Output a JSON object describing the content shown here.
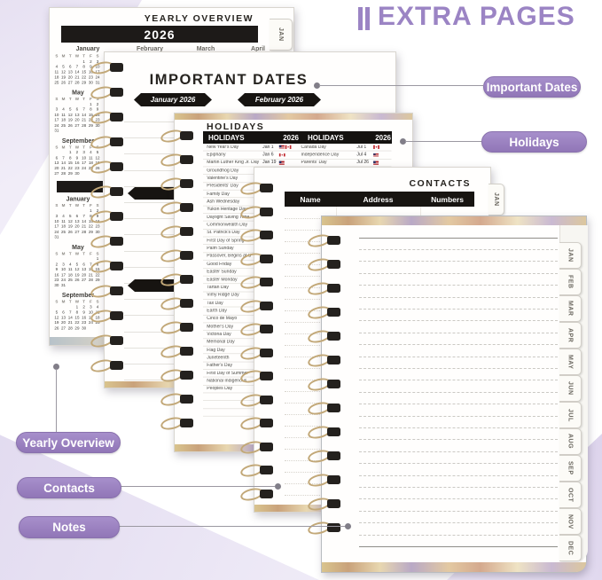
{
  "title": {
    "text": "EXTRA PAGES"
  },
  "colors": {
    "accent": "#9b84c4",
    "pill": "#9d84c6",
    "bar_black": "#1d1a18",
    "wire_gold": "#c2a878"
  },
  "labels": {
    "important_dates": "Important Dates",
    "holidays": "Holidays",
    "yearly_overview": "Yearly Overview",
    "contacts": "Contacts",
    "notes": "Notes"
  },
  "yearly_overview_page": {
    "heading": "YEARLY OVERVIEW",
    "year": "2026",
    "tab": "JAN",
    "top_months": [
      "January",
      "February",
      "March",
      "April"
    ],
    "day_headers": [
      "S",
      "M",
      "T",
      "W",
      "T",
      "F",
      "S"
    ],
    "sections": [
      {
        "months": [
          {
            "name": "January",
            "weeks": [
              [
                "",
                "",
                "",
                "",
                "1",
                "2",
                "3"
              ],
              [
                "4",
                "5",
                "6",
                "7",
                "8",
                "9",
                "10"
              ],
              [
                "11",
                "12",
                "13",
                "14",
                "15",
                "16",
                "17"
              ],
              [
                "18",
                "19",
                "20",
                "21",
                "22",
                "23",
                "24"
              ],
              [
                "25",
                "26",
                "27",
                "28",
                "29",
                "30",
                "31"
              ]
            ]
          },
          {
            "name": "May",
            "weeks": [
              [
                "",
                "",
                "",
                "",
                "",
                "1",
                "2"
              ],
              [
                "3",
                "4",
                "5",
                "6",
                "7",
                "8",
                "9"
              ],
              [
                "10",
                "11",
                "12",
                "13",
                "14",
                "15",
                "16"
              ],
              [
                "17",
                "18",
                "19",
                "20",
                "21",
                "22",
                "23"
              ],
              [
                "24",
                "25",
                "26",
                "27",
                "28",
                "29",
                "30"
              ],
              [
                "31",
                "",
                "",
                "",
                "",
                "",
                ""
              ]
            ]
          },
          {
            "name": "September",
            "weeks": [
              [
                "",
                "",
                "1",
                "2",
                "3",
                "4",
                "5"
              ],
              [
                "6",
                "7",
                "8",
                "9",
                "10",
                "11",
                "12"
              ],
              [
                "13",
                "14",
                "15",
                "16",
                "17",
                "18",
                "19"
              ],
              [
                "20",
                "21",
                "22",
                "23",
                "24",
                "25",
                "26"
              ],
              [
                "27",
                "28",
                "29",
                "30",
                "",
                "",
                ""
              ]
            ]
          }
        ]
      },
      {
        "months": [
          {
            "name": "January",
            "weeks": [
              [
                "",
                "",
                "",
                "",
                "",
                "1",
                "2"
              ],
              [
                "3",
                "4",
                "5",
                "6",
                "7",
                "8",
                "9"
              ],
              [
                "10",
                "11",
                "12",
                "13",
                "14",
                "15",
                "16"
              ],
              [
                "17",
                "18",
                "19",
                "20",
                "21",
                "22",
                "23"
              ],
              [
                "24",
                "25",
                "26",
                "27",
                "28",
                "29",
                "30"
              ],
              [
                "31",
                "",
                "",
                "",
                "",
                "",
                ""
              ]
            ]
          },
          {
            "name": "May",
            "weeks": [
              [
                "",
                "",
                "",
                "",
                "",
                "",
                "1"
              ],
              [
                "2",
                "3",
                "4",
                "5",
                "6",
                "7",
                "8"
              ],
              [
                "9",
                "10",
                "11",
                "12",
                "13",
                "14",
                "15"
              ],
              [
                "16",
                "17",
                "18",
                "19",
                "20",
                "21",
                "22"
              ],
              [
                "23",
                "24",
                "25",
                "26",
                "27",
                "28",
                "29"
              ],
              [
                "30",
                "31",
                "",
                "",
                "",
                "",
                ""
              ]
            ]
          },
          {
            "name": "September",
            "weeks": [
              [
                "",
                "",
                "",
                "1",
                "2",
                "3",
                "4"
              ],
              [
                "5",
                "6",
                "7",
                "8",
                "9",
                "10",
                "11"
              ],
              [
                "12",
                "13",
                "14",
                "15",
                "16",
                "17",
                "18"
              ],
              [
                "19",
                "20",
                "21",
                "22",
                "23",
                "24",
                "25"
              ],
              [
                "26",
                "27",
                "28",
                "29",
                "30",
                "",
                ""
              ]
            ]
          }
        ]
      }
    ]
  },
  "important_dates_page": {
    "heading": "IMPORTANT DATES",
    "banners": [
      "January 2026",
      "February 2026"
    ]
  },
  "holidays_page": {
    "heading": "HOLIDAYS",
    "table": {
      "header": [
        "HOLIDAYS",
        "2026",
        "HOLIDAYS",
        "2026"
      ],
      "left_rows": [
        {
          "name": "New Year's Day",
          "date": "Jan 1",
          "flags": [
            "us",
            "ca"
          ]
        },
        {
          "name": "Epiphany",
          "date": "Jan 6",
          "flags": [
            "ca"
          ]
        },
        {
          "name": "Martin Luther King Jr. Day",
          "date": "Jan 19",
          "flags": [
            "us"
          ]
        },
        {
          "name": "Groundhog Day"
        },
        {
          "name": "Valentine's Day"
        },
        {
          "name": "Presidents' Day"
        },
        {
          "name": "Family Day"
        },
        {
          "name": "Ash Wednesday"
        },
        {
          "name": "Yukon Heritage Day"
        },
        {
          "name": "Daylight Saving Time"
        },
        {
          "name": "Commonwealth Day"
        },
        {
          "name": "St. Patrick's Day"
        },
        {
          "name": "First Day of Spring"
        },
        {
          "name": "Palm Sunday"
        },
        {
          "name": "Passover, Begins at S"
        },
        {
          "name": "Good Friday"
        },
        {
          "name": "Easter Sunday"
        },
        {
          "name": "Easter Monday"
        },
        {
          "name": "Tartan Day"
        },
        {
          "name": "Vimy Ridge Day"
        },
        {
          "name": "Tax Day"
        },
        {
          "name": "Earth Day"
        },
        {
          "name": "Cinco de Mayo"
        },
        {
          "name": "Mother's Day"
        },
        {
          "name": "Victoria Day"
        },
        {
          "name": "Memorial Day"
        },
        {
          "name": "Flag Day"
        },
        {
          "name": "Juneteenth"
        },
        {
          "name": "Father's Day"
        },
        {
          "name": "First Day of Summer"
        },
        {
          "name": "National Indigenous"
        },
        {
          "name": "Peoples Day"
        }
      ],
      "right_rows": [
        {
          "name": "Canada Day",
          "date": "Jul 1",
          "flags": [
            "ca"
          ]
        },
        {
          "name": "Independence Day",
          "date": "Jul 4",
          "flags": [
            "us"
          ]
        },
        {
          "name": "Parents' Day",
          "date": "Jul 26",
          "flags": [
            "us"
          ]
        }
      ]
    }
  },
  "contacts_page": {
    "heading": "CONTACTS",
    "columns": [
      "Name",
      "Address",
      "Numbers"
    ],
    "tab": "JAN"
  },
  "notes_page": {
    "tabs": [
      "JAN",
      "FEB",
      "MAR",
      "APR",
      "MAY",
      "JUN",
      "JUL",
      "AUG",
      "SEP",
      "OCT",
      "NOV",
      "DEC"
    ]
  }
}
